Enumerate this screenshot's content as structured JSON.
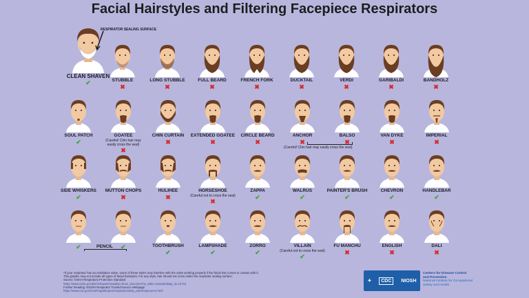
{
  "title": "Facial Hairstyles and Filtering Facepiece Respirators",
  "callout": "RESPIRATOR SEALING SURFACE",
  "clean_shaven": {
    "label": "CLEAN SHAVEN",
    "ok": true
  },
  "marks": {
    "ok": "✔",
    "no": "✖"
  },
  "colors": {
    "background": "#b8b6dd",
    "ok": "#3aa63a",
    "no": "#d62a2a",
    "skin": "#f2c9a0",
    "hair": "#6b3d22"
  },
  "rows": [
    [
      {
        "label": "STUBBLE",
        "ok": false,
        "hair": "stubble"
      },
      {
        "label": "LONG STUBBLE",
        "ok": false,
        "hair": "long-stubble"
      },
      {
        "label": "FULL BEARD",
        "ok": false,
        "hair": "full"
      },
      {
        "label": "FRENCH FORK",
        "ok": false,
        "hair": "fork"
      },
      {
        "label": "DUCKTAIL",
        "ok": false,
        "hair": "full"
      },
      {
        "label": "VERDI",
        "ok": false,
        "hair": "full"
      },
      {
        "label": "GARIBALDI",
        "ok": false,
        "hair": "full"
      },
      {
        "label": "BANDHOLZ",
        "ok": false,
        "hair": "long"
      }
    ],
    [
      {
        "label": "SOUL PATCH",
        "ok": true,
        "hair": "soul"
      },
      {
        "label": "GOATEE",
        "ok": false,
        "hair": "goatee",
        "note": "(Careful! Chin hair may easily cross the seal)"
      },
      {
        "label": "CHIN CURTAIN",
        "ok": false,
        "hair": "curtain"
      },
      {
        "label": "EXTENDED GOATEE",
        "ok": false,
        "hair": "goatee"
      },
      {
        "label": "CIRCLE BEARD",
        "ok": false,
        "hair": "goatee"
      },
      {
        "label": "ANCHOR",
        "ok": false,
        "hair": "anchor"
      },
      {
        "label": "BALSO",
        "ok": false,
        "hair": "goatee"
      },
      {
        "label": "VAN DYKE",
        "ok": false,
        "hair": "goatee"
      },
      {
        "label": "IMPERIAL",
        "ok": false,
        "hair": "imperial"
      }
    ],
    [
      {
        "label": "SIDE WHISKERS",
        "ok": true,
        "hair": "whiskers"
      },
      {
        "label": "MUTTON CHOPS",
        "ok": false,
        "hair": "mutton"
      },
      {
        "label": "HULIHEE",
        "ok": false,
        "hair": "mutton"
      },
      {
        "label": "HORSESHOE",
        "ok": false,
        "hair": "horseshoe",
        "note": "(Careful not to cross the seal)"
      },
      {
        "label": "ZAPPA",
        "ok": true,
        "hair": "mustache"
      },
      {
        "label": "WALRUS",
        "ok": true,
        "hair": "walrus"
      },
      {
        "label": "PAINTER'S BRUSH",
        "ok": true,
        "hair": "mustache"
      },
      {
        "label": "CHEVRON",
        "ok": true,
        "hair": "mustache"
      },
      {
        "label": "HANDLEBAR",
        "ok": true,
        "hair": "mustache"
      }
    ],
    [
      {
        "label": "",
        "ok": true,
        "hair": "pencil"
      },
      {
        "label": "",
        "ok": true,
        "hair": "pencil"
      },
      {
        "label": "TOOTHBRUSH",
        "ok": true,
        "hair": "toothbrush"
      },
      {
        "label": "LAMPSHADE",
        "ok": true,
        "hair": "mustache"
      },
      {
        "label": "ZORRO",
        "ok": true,
        "hair": "mustache"
      },
      {
        "label": "VILLAIN",
        "ok": true,
        "hair": "villain",
        "note": "(Careful not to cross the seal)"
      },
      {
        "label": "FU MANCHU",
        "ok": false,
        "hair": "fumanchu"
      },
      {
        "label": "ENGLISH",
        "ok": false,
        "hair": "mustache"
      },
      {
        "label": "DALI",
        "ok": false,
        "hair": "dali"
      }
    ]
  ],
  "shared_labels": {
    "anchor_balso_note": "(Careful! Chin hair may easily cross the seal)",
    "pencil": "PENCIL"
  },
  "footer": {
    "line1": "*If your respirator has an exhalation valve, some of these styles may interfere with the valve working properly if the facial hair comes in contact with it.",
    "line2": "This graphic may not include all types of facial hairstyles. For any style, hair should not cross under the respirator sealing surface.",
    "source_label": "Source: OSHA Respiratory Protection Standard",
    "source_url": "https://www.osha.gov/pls/oshaweb/owadisp.show_document?p_table=standards&p_id=12716",
    "reading_label": "Further Reading: NIOSH Respirator Trusted-Source Webpage",
    "reading_url": "https://www.cdc.gov/niosh/npptl/topics/respirators/disp_part/respsource.html"
  },
  "logo": {
    "cdc": "CDC",
    "niosh": "NIOSH"
  },
  "agency": {
    "line1": "Centers for Disease Control",
    "line2": "and Prevention",
    "line3": "National Institute for Occupational",
    "line4": "Safety and Health"
  }
}
